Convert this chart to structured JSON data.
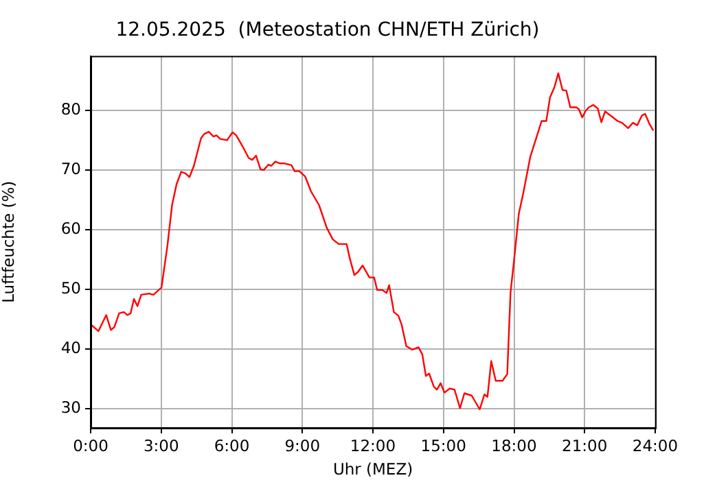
{
  "chart_data": {
    "type": "line",
    "title": "12.05.2025  (Meteostation CHN/ETH Zürich)",
    "xlabel": "Uhr (MEZ)",
    "ylabel": "Luftfeuchte (%)",
    "xlim": [
      0,
      24
    ],
    "xticks": [
      {
        "value": 0,
        "label": "0:00"
      },
      {
        "value": 3,
        "label": "3:00"
      },
      {
        "value": 6,
        "label": "6:00"
      },
      {
        "value": 9,
        "label": "9:00"
      },
      {
        "value": 12,
        "label": "12:00"
      },
      {
        "value": 15,
        "label": "15:00"
      },
      {
        "value": 18,
        "label": "18:00"
      },
      {
        "value": 21,
        "label": "21:00"
      },
      {
        "value": 24,
        "label": "24:00"
      }
    ],
    "ylim": [
      26.8,
      89.1
    ],
    "yticks": [
      30,
      40,
      50,
      60,
      70,
      80
    ],
    "grid": true,
    "marker": "none",
    "line_style": "solid",
    "series": [
      {
        "color": "#ff0000",
        "x": [
          0.04,
          0.33,
          0.66,
          0.86,
          1.01,
          1.21,
          1.41,
          1.56,
          1.7,
          1.84,
          1.99,
          2.15,
          2.48,
          2.67,
          3.01,
          3.26,
          3.46,
          3.65,
          3.85,
          4.04,
          4.2,
          4.39,
          4.69,
          4.82,
          5.02,
          5.22,
          5.35,
          5.51,
          5.8,
          6.03,
          6.19,
          6.48,
          6.72,
          6.87,
          7.03,
          7.22,
          7.36,
          7.56,
          7.68,
          7.85,
          8.05,
          8.24,
          8.54,
          8.67,
          8.87,
          9.12,
          9.37,
          9.71,
          10.04,
          10.29,
          10.54,
          10.88,
          11.01,
          11.21,
          11.36,
          11.56,
          11.85,
          12.05,
          12.18,
          12.4,
          12.58,
          12.69,
          12.89,
          13.08,
          13.22,
          13.42,
          13.67,
          13.94,
          14.1,
          14.25,
          14.39,
          14.59,
          14.72,
          14.88,
          15.04,
          15.27,
          15.47,
          15.7,
          15.89,
          16.2,
          16.54,
          16.74,
          16.87,
          17.03,
          17.22,
          17.51,
          17.71,
          17.85,
          18,
          18.2,
          18.39,
          18.69,
          18.98,
          19.17,
          19.37,
          19.53,
          19.71,
          19.88,
          20.06,
          20.22,
          20.39,
          20.65,
          20.75,
          20.9,
          21.04,
          21.18,
          21.37,
          21.56,
          21.71,
          21.87,
          22.14,
          22.4,
          22.59,
          22.85,
          23.05,
          23.24,
          23.43,
          23.57,
          23.77,
          23.92
        ],
        "values": [
          44.0,
          43.0,
          45.7,
          43.2,
          43.7,
          46.0,
          46.2,
          45.7,
          46.0,
          48.4,
          47.2,
          49.1,
          49.3,
          49.1,
          50.3,
          57.2,
          64.1,
          67.6,
          69.7,
          69.4,
          68.8,
          70.7,
          75.3,
          76.0,
          76.4,
          75.6,
          75.8,
          75.2,
          75.0,
          76.3,
          75.8,
          73.8,
          72.0,
          71.7,
          72.4,
          70.1,
          70.0,
          70.9,
          70.7,
          71.4,
          71.1,
          71.1,
          70.8,
          69.8,
          69.8,
          68.9,
          66.4,
          64.1,
          60.3,
          58.4,
          57.6,
          57.6,
          55.3,
          52.4,
          52.9,
          54.0,
          52.0,
          52.0,
          49.9,
          49.9,
          49.4,
          50.7,
          46.2,
          45.6,
          44.1,
          40.5,
          39.9,
          40.3,
          39.1,
          35.5,
          35.9,
          33.7,
          33.2,
          34.3,
          32.7,
          33.4,
          33.2,
          30.1,
          32.6,
          32.2,
          29.9,
          32.4,
          32.0,
          38.0,
          34.7,
          34.7,
          35.8,
          49.5,
          54.9,
          62.6,
          66.1,
          72.2,
          75.8,
          78.2,
          78.2,
          82.2,
          83.8,
          86.2,
          83.4,
          83.3,
          80.5,
          80.5,
          80.2,
          78.8,
          79.9,
          80.5,
          80.9,
          80.3,
          78.0,
          79.8,
          79.0,
          78.2,
          77.9,
          77.0,
          77.9,
          77.5,
          79.1,
          79.4,
          77.6,
          76.6
        ]
      }
    ]
  }
}
